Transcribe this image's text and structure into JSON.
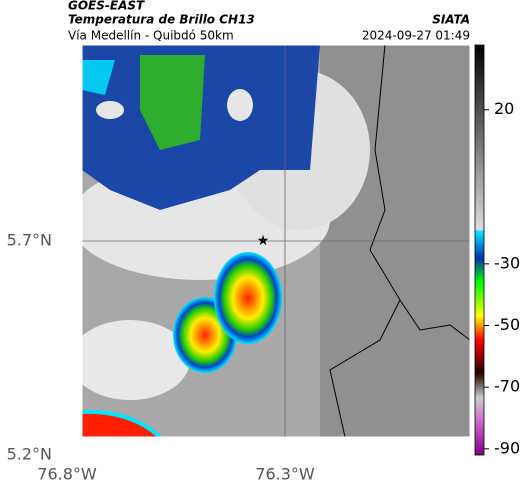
{
  "header": {
    "satellite": "GOES-EAST",
    "product": "Temperatura de Brillo CH13",
    "agency": "SIATA",
    "location": "Vía Medellín - Quibdó 50km",
    "datetime": "2024-09-27 01:49"
  },
  "map_axes": {
    "lat_labels": [
      "5.7°N",
      "5.2°N"
    ],
    "lon_labels": [
      "76.8°W",
      "76.3°W"
    ]
  },
  "colorbar": {
    "lim": [
      -92,
      41
    ],
    "ticks": [
      20,
      -30,
      -50,
      -70,
      -90
    ]
  }
}
